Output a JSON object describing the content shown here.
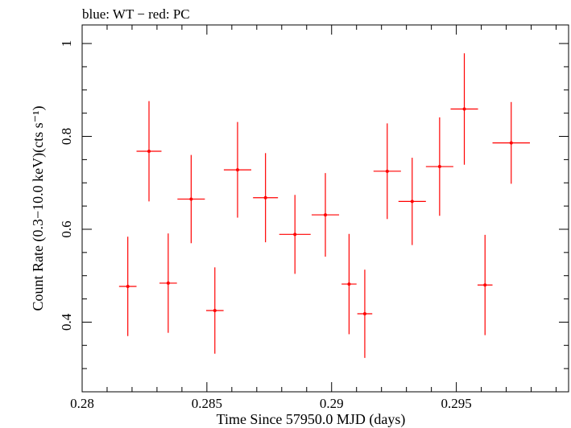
{
  "chart_data": {
    "type": "scatter",
    "title": "blue: WT − red: PC",
    "xlabel": "Time Since 57950.0 MJD (days)",
    "ylabel": "Count Rate (0.3−10.0 keV)(cts s⁻¹)",
    "xlim": [
      0.28,
      0.2995
    ],
    "ylim": [
      0.25,
      1.04
    ],
    "x_major_ticks": [
      0.28,
      0.285,
      0.29,
      0.295
    ],
    "x_tick_labels": [
      "0.28",
      "0.285",
      "0.29",
      "0.295"
    ],
    "x_minor_step": 0.001,
    "y_major_ticks": [
      0.4,
      0.6,
      0.8,
      1.0
    ],
    "y_tick_labels": [
      "0.4",
      "0.6",
      "0.8",
      "1"
    ],
    "y_minor_step": 0.05,
    "grid": false,
    "series": [
      {
        "color": "#ff0000",
        "points": [
          {
            "x": 0.28183,
            "xerr": 0.00035,
            "y": 0.477,
            "yerr": 0.107
          },
          {
            "x": 0.28268,
            "xerr": 0.0005,
            "y": 0.768,
            "yerr": 0.108
          },
          {
            "x": 0.28345,
            "xerr": 0.00035,
            "y": 0.484,
            "yerr": 0.107
          },
          {
            "x": 0.28437,
            "xerr": 0.00055,
            "y": 0.665,
            "yerr": 0.095
          },
          {
            "x": 0.28532,
            "xerr": 0.00035,
            "y": 0.425,
            "yerr": 0.093
          },
          {
            "x": 0.28623,
            "xerr": 0.00055,
            "y": 0.728,
            "yerr": 0.103
          },
          {
            "x": 0.28735,
            "xerr": 0.0005,
            "y": 0.668,
            "yerr": 0.096
          },
          {
            "x": 0.28853,
            "xerr": 0.00063,
            "y": 0.589,
            "yerr": 0.085
          },
          {
            "x": 0.28975,
            "xerr": 0.00055,
            "y": 0.631,
            "yerr": 0.09
          },
          {
            "x": 0.2907,
            "xerr": 0.0003,
            "y": 0.482,
            "yerr": 0.108
          },
          {
            "x": 0.29133,
            "xerr": 0.0003,
            "y": 0.418,
            "yerr": 0.095
          },
          {
            "x": 0.29223,
            "xerr": 0.00055,
            "y": 0.725,
            "yerr": 0.103
          },
          {
            "x": 0.29323,
            "xerr": 0.00055,
            "y": 0.66,
            "yerr": 0.094
          },
          {
            "x": 0.29433,
            "xerr": 0.00055,
            "y": 0.735,
            "yerr": 0.106
          },
          {
            "x": 0.29532,
            "xerr": 0.00055,
            "y": 0.859,
            "yerr": 0.12
          },
          {
            "x": 0.29615,
            "xerr": 0.0003,
            "y": 0.48,
            "yerr": 0.108
          },
          {
            "x": 0.2972,
            "xerr": 0.00075,
            "y": 0.786,
            "yerr": 0.088
          }
        ]
      }
    ]
  }
}
